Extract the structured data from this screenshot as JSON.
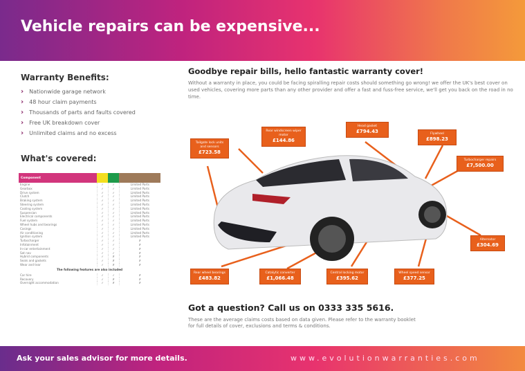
{
  "header": {
    "title": "Vehicle repairs can be expensive..."
  },
  "benefits": {
    "title": "Warranty Benefits:",
    "items": [
      "Nationwide garage network",
      "48 hour claim payments",
      "Thousands of parts and faults covered",
      "Free UK breakdown cover",
      "Unlimited claims and no excess"
    ]
  },
  "covered": {
    "title": "What's covered:",
    "headers": [
      "Component",
      "",
      "",
      ""
    ],
    "rows": [
      [
        "Engine",
        "✓",
        "✓",
        "Limited Parts"
      ],
      [
        "Gearbox",
        "✓",
        "✓",
        "Limited Parts"
      ],
      [
        "Drive system",
        "✓",
        "✓",
        "Limited Parts"
      ],
      [
        "Clutch",
        "✓",
        "✓",
        "Limited Parts"
      ],
      [
        "Braking system",
        "✓",
        "✓",
        "Limited Parts"
      ],
      [
        "Steering system",
        "✓",
        "✓",
        "Limited Parts"
      ],
      [
        "Cooling system",
        "✓",
        "✓",
        "Limited Parts"
      ],
      [
        "Suspension",
        "✓",
        "✓",
        "Limited Parts"
      ],
      [
        "Electrical components",
        "✓",
        "✓",
        "Limited Parts"
      ],
      [
        "Fuel system",
        "✓",
        "✓",
        "Limited Parts"
      ],
      [
        "Wheel hubs and bearings",
        "✓",
        "✓",
        "Limited Parts"
      ],
      [
        "Casings",
        "✓",
        "✓",
        "Limited Parts"
      ],
      [
        "Air conditioning",
        "✓",
        "✓",
        "Limited Parts"
      ],
      [
        "Ignition system",
        "✓",
        "✓",
        "Limited Parts"
      ],
      [
        "Turbocharger",
        "✓",
        "✓",
        "✗"
      ],
      [
        "Infotainment",
        "✓",
        "✓",
        "✗"
      ],
      [
        "In-car entertainment",
        "✓",
        "✓",
        "✗"
      ],
      [
        "Sat nav",
        "✓",
        "✓",
        "✗"
      ],
      [
        "Hybrid components",
        "✓",
        "✗",
        "✗"
      ],
      [
        "Seals and gaskets",
        "✓",
        "✗",
        "✗"
      ],
      [
        "Wear and tear",
        "✓",
        "✗",
        "✗"
      ]
    ],
    "extras_title": "The following features are also included",
    "extras": [
      [
        "Car hire",
        "✓",
        "✓",
        "✗"
      ],
      [
        "Recovery",
        "✓",
        "✗",
        "✗"
      ],
      [
        "Overnight accommodation",
        "✓",
        "✗",
        "✗"
      ]
    ]
  },
  "intro": {
    "title": "Goodbye repair bills, hello fantastic warranty cover!",
    "body": "Without a warranty in place, you could be facing spiralling repair costs should something go wrong! we offer the UK's best cover on used vehicles, covering more parts than any other provider and offer a fast and fuss-free service, we'll get you back on the road in no time."
  },
  "callouts": [
    {
      "label": "Tailgate lock units and sensors",
      "price": "£723.58"
    },
    {
      "label": "Rear windscreen wiper motor",
      "price": "£144.86"
    },
    {
      "label": "Head gasket",
      "price": "£794.43"
    },
    {
      "label": "Flywheel",
      "price": "£898.23"
    },
    {
      "label": "Turbocharger repairs",
      "price": "£7,500.00"
    },
    {
      "label": "Alternator",
      "price": "£304.69"
    },
    {
      "label": "Rear wheel bearings",
      "price": "£483.82"
    },
    {
      "label": "Catalytic converter",
      "price": "£1,066.48"
    },
    {
      "label": "Central locking motor",
      "price": "£395.62"
    },
    {
      "label": "Wheel speed sensor",
      "price": "£377.25"
    }
  ],
  "question": {
    "title": "Got a question? Call us on 0333 335 5616.",
    "body": "These are the average claims costs based on data given. Please refer to the warranty booklet for full details of cover, exclusions and terms & conditions."
  },
  "footer": {
    "left": "Ask your sales advisor for more details.",
    "right": "www.evolutionwarranties.com"
  },
  "colors": {
    "orange": "#e8601c",
    "pink": "#d2357c"
  }
}
